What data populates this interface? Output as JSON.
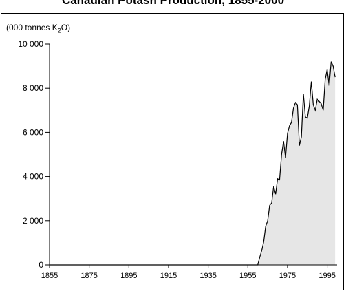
{
  "chart_data": {
    "type": "area",
    "title": "Canadian Potash Production, 1855-2000",
    "ylabel_prefix": "(000 tonnes K",
    "ylabel_sub": "2",
    "ylabel_suffix": "O)",
    "ylim": [
      0,
      10000
    ],
    "xlim": [
      1855,
      2000
    ],
    "yticks": [
      0,
      2000,
      4000,
      6000,
      8000,
      10000
    ],
    "ytick_labels": [
      "0",
      "2 000",
      "4 000",
      "6 000",
      "8 000",
      "10 000"
    ],
    "xticks": [
      1855,
      1875,
      1895,
      1915,
      1935,
      1955,
      1975,
      1995
    ],
    "xtick_labels": [
      "1855",
      "1875",
      "1895",
      "1915",
      "1935",
      "1955",
      "1975",
      "1995"
    ],
    "fill_color": "#e6e6e6",
    "line_color": "#000000",
    "x": [
      1855,
      1960,
      1961,
      1962,
      1963,
      1964,
      1965,
      1966,
      1967,
      1968,
      1969,
      1970,
      1971,
      1972,
      1973,
      1974,
      1975,
      1976,
      1977,
      1978,
      1979,
      1980,
      1981,
      1982,
      1983,
      1984,
      1985,
      1986,
      1987,
      1988,
      1989,
      1990,
      1991,
      1992,
      1993,
      1994,
      1995,
      1996,
      1997,
      1998,
      1999
    ],
    "values": [
      0,
      0,
      350,
      650,
      1050,
      1750,
      2000,
      2700,
      2800,
      3550,
      3200,
      3900,
      3850,
      5000,
      5600,
      4850,
      5950,
      6300,
      6450,
      7100,
      7350,
      7250,
      5400,
      5800,
      7750,
      6700,
      6650,
      7200,
      8300,
      7250,
      7000,
      7500,
      7400,
      7300,
      7000,
      8400,
      8850,
      8100,
      9200,
      9000,
      8500
    ]
  }
}
